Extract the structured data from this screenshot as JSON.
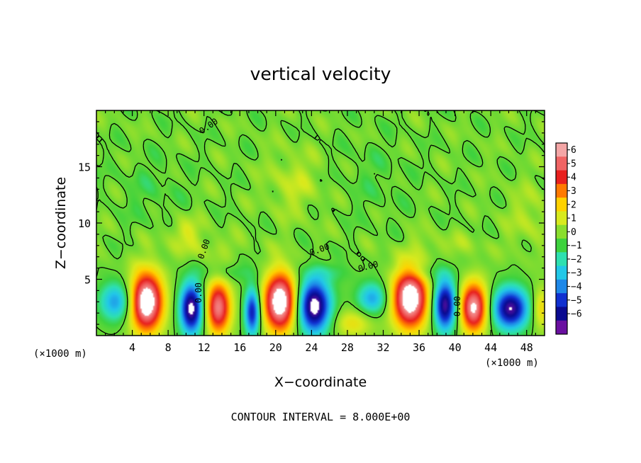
{
  "chart_data": {
    "type": "heatmap",
    "title": "vertical velocity",
    "xlabel": "X−coordinate",
    "ylabel": "Z−coordinate",
    "x_unit_label": "(×1000 m)",
    "y_unit_label": "(×1000 m)",
    "xlim": [
      0,
      50
    ],
    "ylim": [
      0,
      20
    ],
    "x_ticks": [
      4,
      8,
      12,
      16,
      20,
      24,
      28,
      32,
      36,
      40,
      44,
      48
    ],
    "y_ticks": [
      5,
      10,
      15
    ],
    "footer": "CONTOUR INTERVAL = 8.000E+00",
    "contour_label": "0.00",
    "colorbar": {
      "levels": [
        "6",
        "5",
        "4",
        "3",
        "2",
        "1",
        "0",
        "−1",
        "−2",
        "−3",
        "−4",
        "−5",
        "−6"
      ],
      "colors": [
        "#f4a6a6",
        "#f06464",
        "#e8201e",
        "#ff7a00",
        "#ffd200",
        "#d8ea1e",
        "#8ade2e",
        "#3ed23e",
        "#2ee0b0",
        "#22c8e8",
        "#1e88e8",
        "#1030d0",
        "#0a0a90",
        "#6a10a0"
      ],
      "extreme_colors": {
        "above": "#ffffff",
        "below": "#ffffff"
      }
    },
    "background_value": 0.15,
    "cells": [
      {
        "x": 2.2,
        "z": 3.0,
        "sx": 1.3,
        "sz": 1.2,
        "amp": -3.4
      },
      {
        "x": 5.6,
        "z": 3.0,
        "sx": 1.3,
        "sz": 1.9,
        "amp": 7.5
      },
      {
        "x": 10.6,
        "z": 2.4,
        "sx": 0.9,
        "sz": 1.6,
        "amp": -6.8
      },
      {
        "x": 13.6,
        "z": 2.5,
        "sx": 1.0,
        "sz": 1.7,
        "amp": 5.8
      },
      {
        "x": 17.4,
        "z": 2.1,
        "sx": 0.6,
        "sz": 1.5,
        "amp": -5.4
      },
      {
        "x": 20.5,
        "z": 3.0,
        "sx": 1.3,
        "sz": 1.9,
        "amp": 7.4
      },
      {
        "x": 24.3,
        "z": 2.6,
        "sx": 1.3,
        "sz": 1.7,
        "amp": -7.0
      },
      {
        "x": 28.6,
        "z": 1.1,
        "sx": 1.6,
        "sz": 0.9,
        "amp": 1.8
      },
      {
        "x": 30.8,
        "z": 3.3,
        "sx": 1.2,
        "sz": 1.0,
        "amp": -3.2
      },
      {
        "x": 35.0,
        "z": 3.3,
        "sx": 1.4,
        "sz": 1.9,
        "amp": 7.5
      },
      {
        "x": 38.9,
        "z": 2.7,
        "sx": 0.9,
        "sz": 1.6,
        "amp": -6.5
      },
      {
        "x": 42.1,
        "z": 2.5,
        "sx": 1.1,
        "sz": 1.6,
        "amp": 6.4
      },
      {
        "x": 46.2,
        "z": 2.4,
        "sx": 1.4,
        "sz": 1.3,
        "amp": -6.4
      },
      {
        "x": 49.6,
        "z": 2.4,
        "sx": 0.7,
        "sz": 1.3,
        "amp": 2.2
      },
      {
        "x": 9.8,
        "z": 9.2,
        "sx": 1.3,
        "sz": 0.9,
        "amp": 1.3
      },
      {
        "x": 22.0,
        "z": 13.5,
        "sx": 2.0,
        "sz": 2.0,
        "amp": 1.0
      },
      {
        "x": 48.5,
        "z": 10.5,
        "sx": 2.0,
        "sz": 2.0,
        "amp": 0.8
      },
      {
        "x": 12.5,
        "z": 7.8,
        "sx": 2.5,
        "sz": 0.7,
        "amp": 0.7
      },
      {
        "x": 39.0,
        "z": 8.0,
        "sx": 3.0,
        "sz": 0.8,
        "amp": 0.6
      },
      {
        "x": 15.0,
        "z": 5.6,
        "sx": 2.5,
        "sz": 0.6,
        "amp": -0.9
      },
      {
        "x": 26.0,
        "z": 5.6,
        "sx": 2.0,
        "sz": 0.6,
        "amp": -0.8
      },
      {
        "x": 37.0,
        "z": 5.6,
        "sx": 2.0,
        "sz": 0.6,
        "amp": -0.9
      },
      {
        "x": 6.0,
        "z": 13.0,
        "sx": 2.5,
        "sz": 2.0,
        "amp": -0.5
      },
      {
        "x": 31.0,
        "z": 14.0,
        "sx": 2.5,
        "sz": 2.5,
        "amp": -0.4
      }
    ]
  }
}
